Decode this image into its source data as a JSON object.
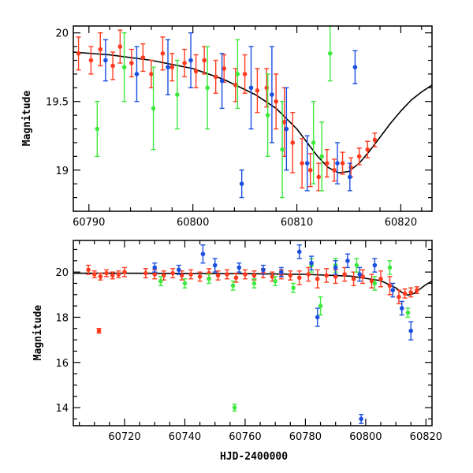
{
  "chart_data": [
    {
      "type": "scatter",
      "panel": "top",
      "title": "",
      "xlabel": "",
      "ylabel": "Magnitude",
      "xlim": [
        60788.5,
        60823
      ],
      "ylim": [
        20.05,
        18.7
      ],
      "y_inverted": true,
      "x_ticks": [
        60790,
        60800,
        60810,
        60820
      ],
      "y_ticks": [
        19,
        19.5,
        20
      ],
      "y_tick_labels": [
        "19",
        "19.5",
        "20"
      ],
      "grid": false,
      "legend": "none",
      "colors": {
        "red": "#ff3b1f",
        "green": "#3ee83e",
        "blue": "#1a4fe0",
        "model": "#000000"
      },
      "model_curve": {
        "x": [
          60788.5,
          60792,
          60796,
          60800,
          60803,
          60806,
          60808,
          60810,
          60811,
          60812,
          60813,
          60814,
          60815,
          60816,
          60817,
          60818,
          60819,
          60820,
          60821,
          60822,
          60823
        ],
        "y": [
          19.86,
          19.84,
          19.8,
          19.74,
          19.66,
          19.55,
          19.45,
          19.3,
          19.2,
          19.1,
          19.02,
          18.98,
          18.99,
          19.05,
          19.14,
          19.24,
          19.34,
          19.43,
          19.51,
          19.57,
          19.62
        ]
      },
      "series": [
        {
          "name": "",
          "color": "red",
          "x": [
            60789.0,
            60790.2,
            60791.1,
            60792.3,
            60793.0,
            60794.1,
            60795.2,
            60796.0,
            60797.1,
            60798.0,
            60799.2,
            60800.3,
            60801.1,
            60802.2,
            60803.0,
            60804.1,
            60805.0,
            60806.2,
            60807.1,
            60808.0,
            60808.8,
            60809.6,
            60810.5,
            60811.3,
            60812.1,
            60812.9,
            60813.6,
            60814.4,
            60815.2,
            60816.0,
            60816.8,
            60817.5
          ],
          "y": [
            19.85,
            19.8,
            19.88,
            19.76,
            19.9,
            19.78,
            19.82,
            19.7,
            19.85,
            19.75,
            19.78,
            19.72,
            19.8,
            19.68,
            19.74,
            19.62,
            19.7,
            19.58,
            19.6,
            19.5,
            19.35,
            19.2,
            19.05,
            19.0,
            18.95,
            19.05,
            19.0,
            19.05,
            19.02,
            19.1,
            19.15,
            19.22
          ],
          "err": [
            0.12,
            0.1,
            0.12,
            0.1,
            0.12,
            0.1,
            0.1,
            0.1,
            0.12,
            0.1,
            0.1,
            0.12,
            0.1,
            0.12,
            0.1,
            0.12,
            0.14,
            0.16,
            0.14,
            0.2,
            0.25,
            0.22,
            0.18,
            0.12,
            0.1,
            0.1,
            0.08,
            0.08,
            0.07,
            0.06,
            0.06,
            0.05
          ]
        },
        {
          "name": "",
          "color": "green",
          "x": [
            60790.8,
            60793.4,
            60796.2,
            60798.5,
            60801.4,
            60804.3,
            60807.2,
            60808.6,
            60811.6,
            60812.4,
            60813.2
          ],
          "y": [
            19.3,
            19.75,
            19.45,
            19.55,
            19.6,
            19.7,
            19.4,
            19.15,
            19.2,
            19.1,
            19.85
          ],
          "err": [
            0.2,
            0.25,
            0.3,
            0.25,
            0.3,
            0.25,
            0.3,
            0.35,
            0.3,
            0.25,
            0.2
          ]
        },
        {
          "name": "",
          "color": "blue",
          "x": [
            60791.6,
            60794.6,
            60797.6,
            60799.8,
            60802.8,
            60804.7,
            60805.6,
            60807.6,
            60809.0,
            60811.0,
            60813.9,
            60815.1,
            60815.6
          ],
          "y": [
            19.8,
            19.7,
            19.75,
            19.8,
            19.65,
            18.9,
            19.6,
            19.55,
            19.3,
            19.05,
            19.05,
            18.95,
            19.75
          ],
          "err": [
            0.15,
            0.2,
            0.2,
            0.2,
            0.2,
            0.1,
            0.3,
            0.35,
            0.3,
            0.2,
            0.15,
            0.1,
            0.12
          ]
        }
      ]
    },
    {
      "type": "scatter",
      "panel": "bottom",
      "title": "",
      "xlabel": "HJD-2400000",
      "ylabel": "Magnitude",
      "xlim": [
        60703,
        60822
      ],
      "ylim": [
        21.4,
        13.2
      ],
      "y_inverted": true,
      "x_ticks": [
        60720,
        60740,
        60760,
        60780,
        60800,
        60820
      ],
      "y_ticks": [
        14,
        16,
        18,
        20
      ],
      "y_tick_labels": [
        "14",
        "16",
        "18",
        "20"
      ],
      "grid": false,
      "legend": "none",
      "colors": {
        "red": "#ff3b1f",
        "green": "#3ee83e",
        "blue": "#1a4fe0",
        "model": "#000000"
      },
      "model_curve": {
        "x": [
          60703,
          60720,
          60740,
          60760,
          60780,
          60795,
          60805,
          60810,
          60812,
          60814,
          60816,
          60818,
          60820,
          60822
        ],
        "y": [
          19.95,
          19.95,
          19.94,
          19.93,
          19.9,
          19.82,
          19.62,
          19.3,
          19.1,
          18.98,
          19.05,
          19.25,
          19.45,
          19.6
        ]
      },
      "series": [
        {
          "name": "",
          "color": "red",
          "x": [
            60708,
            60710,
            60712,
            60714,
            60716,
            60718,
            60720,
            60727,
            60730,
            60733,
            60736,
            60739,
            60742,
            60745,
            60748,
            60751,
            60754,
            60757,
            60760,
            60763,
            60766,
            60769,
            60772,
            60775,
            60778,
            60781,
            60784,
            60787,
            60790,
            60793,
            60796,
            60799,
            60802,
            60805,
            60808,
            60811,
            60813,
            60815,
            60817,
            60711.5
          ],
          "y": [
            20.1,
            19.9,
            19.8,
            19.95,
            19.85,
            19.9,
            20.0,
            19.95,
            19.9,
            19.85,
            19.95,
            19.85,
            19.9,
            19.8,
            19.95,
            19.85,
            19.9,
            19.75,
            19.9,
            19.85,
            19.95,
            19.8,
            19.9,
            19.85,
            19.75,
            19.9,
            19.7,
            19.85,
            19.8,
            19.9,
            19.7,
            19.8,
            19.6,
            19.7,
            19.4,
            18.9,
            19.05,
            19.1,
            19.2,
            17.4
          ],
          "err": [
            0.2,
            0.15,
            0.15,
            0.15,
            0.15,
            0.15,
            0.2,
            0.2,
            0.2,
            0.2,
            0.2,
            0.2,
            0.2,
            0.2,
            0.2,
            0.2,
            0.2,
            0.2,
            0.2,
            0.2,
            0.2,
            0.2,
            0.2,
            0.2,
            0.3,
            0.3,
            0.4,
            0.3,
            0.3,
            0.3,
            0.3,
            0.3,
            0.3,
            0.35,
            0.4,
            0.3,
            0.2,
            0.2,
            0.15,
            0.1
          ]
        },
        {
          "name": "",
          "color": "green",
          "x": [
            60732,
            60740,
            60748,
            60756,
            60763,
            60770,
            60776,
            60782,
            60785,
            60790,
            60797,
            60803,
            60808,
            60814,
            60756.5
          ],
          "y": [
            19.6,
            19.5,
            19.7,
            19.4,
            19.5,
            19.6,
            19.3,
            20.3,
            18.5,
            20.3,
            20.3,
            19.5,
            20.2,
            18.2,
            14.0
          ],
          "err": [
            0.2,
            0.2,
            0.2,
            0.2,
            0.2,
            0.2,
            0.2,
            0.3,
            0.4,
            0.3,
            0.3,
            0.3,
            0.3,
            0.2,
            0.15
          ]
        },
        {
          "name": "",
          "color": "blue",
          "x": [
            60730,
            60738,
            60746,
            60750,
            60758,
            60766,
            60772,
            60778,
            60782,
            60784,
            60790,
            60794,
            60798,
            60803,
            60809,
            60812,
            60815,
            60798.5
          ],
          "y": [
            20.2,
            20.1,
            20.8,
            20.3,
            20.2,
            20.1,
            20.0,
            20.9,
            20.4,
            18.0,
            20.2,
            20.5,
            19.9,
            20.3,
            19.2,
            18.4,
            17.4,
            13.5
          ],
          "err": [
            0.2,
            0.2,
            0.4,
            0.3,
            0.2,
            0.2,
            0.2,
            0.3,
            0.3,
            0.4,
            0.3,
            0.3,
            0.3,
            0.3,
            0.3,
            0.3,
            0.4,
            0.2
          ]
        }
      ]
    }
  ]
}
